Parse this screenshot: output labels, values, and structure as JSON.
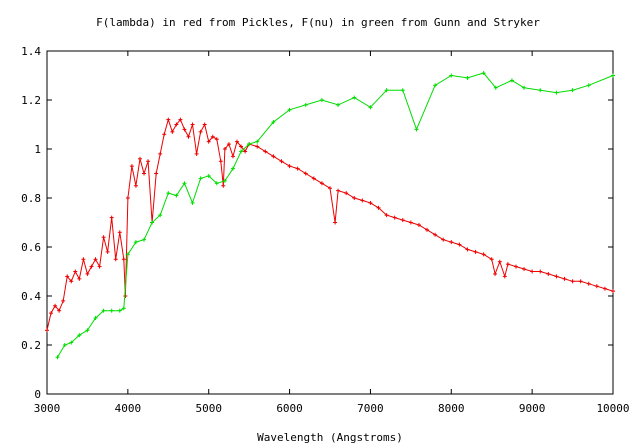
{
  "chart_data": {
    "type": "line",
    "title": "F(lambda) in red from Pickles, F(nu) in green from Gunn and Stryker",
    "xlabel": "Wavelength (Angstroms)",
    "ylabel": "",
    "xlim": [
      3000,
      10000
    ],
    "ylim": [
      0,
      1.4
    ],
    "xticks": [
      "3000",
      "4000",
      "5000",
      "6000",
      "7000",
      "8000",
      "9000",
      "10000"
    ],
    "yticks": [
      "0",
      "0.2",
      "0.4",
      "0.6",
      "0.8",
      "1",
      "1.2",
      "1.4"
    ],
    "grid": false,
    "legend": "none",
    "series": [
      {
        "color": "#ee0000",
        "points": [
          [
            3000,
            0.26
          ],
          [
            3050,
            0.33
          ],
          [
            3100,
            0.36
          ],
          [
            3150,
            0.34
          ],
          [
            3200,
            0.38
          ],
          [
            3250,
            0.48
          ],
          [
            3300,
            0.46
          ],
          [
            3350,
            0.5
          ],
          [
            3400,
            0.47
          ],
          [
            3450,
            0.55
          ],
          [
            3500,
            0.49
          ],
          [
            3550,
            0.52
          ],
          [
            3600,
            0.55
          ],
          [
            3650,
            0.52
          ],
          [
            3700,
            0.64
          ],
          [
            3750,
            0.58
          ],
          [
            3800,
            0.72
          ],
          [
            3850,
            0.55
          ],
          [
            3900,
            0.66
          ],
          [
            3950,
            0.55
          ],
          [
            3970,
            0.4
          ],
          [
            4000,
            0.8
          ],
          [
            4050,
            0.93
          ],
          [
            4100,
            0.85
          ],
          [
            4150,
            0.96
          ],
          [
            4200,
            0.9
          ],
          [
            4250,
            0.95
          ],
          [
            4300,
            0.7
          ],
          [
            4350,
            0.9
          ],
          [
            4400,
            0.98
          ],
          [
            4450,
            1.06
          ],
          [
            4500,
            1.12
          ],
          [
            4550,
            1.07
          ],
          [
            4600,
            1.1
          ],
          [
            4650,
            1.12
          ],
          [
            4700,
            1.08
          ],
          [
            4750,
            1.05
          ],
          [
            4800,
            1.1
          ],
          [
            4850,
            0.98
          ],
          [
            4900,
            1.07
          ],
          [
            4950,
            1.1
          ],
          [
            5000,
            1.03
          ],
          [
            5050,
            1.05
          ],
          [
            5100,
            1.04
          ],
          [
            5150,
            0.95
          ],
          [
            5180,
            0.85
          ],
          [
            5200,
            1.0
          ],
          [
            5250,
            1.02
          ],
          [
            5300,
            0.97
          ],
          [
            5350,
            1.03
          ],
          [
            5400,
            1.01
          ],
          [
            5450,
            0.99
          ],
          [
            5500,
            1.02
          ],
          [
            5600,
            1.01
          ],
          [
            5700,
            0.99
          ],
          [
            5800,
            0.97
          ],
          [
            5900,
            0.95
          ],
          [
            6000,
            0.93
          ],
          [
            6100,
            0.92
          ],
          [
            6200,
            0.9
          ],
          [
            6300,
            0.88
          ],
          [
            6400,
            0.86
          ],
          [
            6500,
            0.84
          ],
          [
            6563,
            0.7
          ],
          [
            6600,
            0.83
          ],
          [
            6700,
            0.82
          ],
          [
            6800,
            0.8
          ],
          [
            6900,
            0.79
          ],
          [
            7000,
            0.78
          ],
          [
            7100,
            0.76
          ],
          [
            7200,
            0.73
          ],
          [
            7300,
            0.72
          ],
          [
            7400,
            0.71
          ],
          [
            7500,
            0.7
          ],
          [
            7600,
            0.69
          ],
          [
            7700,
            0.67
          ],
          [
            7800,
            0.65
          ],
          [
            7900,
            0.63
          ],
          [
            8000,
            0.62
          ],
          [
            8100,
            0.61
          ],
          [
            8200,
            0.59
          ],
          [
            8300,
            0.58
          ],
          [
            8400,
            0.57
          ],
          [
            8500,
            0.55
          ],
          [
            8542,
            0.49
          ],
          [
            8600,
            0.54
          ],
          [
            8662,
            0.48
          ],
          [
            8700,
            0.53
          ],
          [
            8800,
            0.52
          ],
          [
            8900,
            0.51
          ],
          [
            9000,
            0.5
          ],
          [
            9100,
            0.5
          ],
          [
            9200,
            0.49
          ],
          [
            9300,
            0.48
          ],
          [
            9400,
            0.47
          ],
          [
            9500,
            0.46
          ],
          [
            9600,
            0.46
          ],
          [
            9700,
            0.45
          ],
          [
            9800,
            0.44
          ],
          [
            9900,
            0.43
          ],
          [
            10000,
            0.42
          ]
        ]
      },
      {
        "color": "#00dd00",
        "points": [
          [
            3130,
            0.15
          ],
          [
            3220,
            0.2
          ],
          [
            3300,
            0.21
          ],
          [
            3400,
            0.24
          ],
          [
            3500,
            0.26
          ],
          [
            3600,
            0.31
          ],
          [
            3700,
            0.34
          ],
          [
            3800,
            0.34
          ],
          [
            3900,
            0.34
          ],
          [
            3950,
            0.35
          ],
          [
            4000,
            0.57
          ],
          [
            4100,
            0.62
          ],
          [
            4200,
            0.63
          ],
          [
            4300,
            0.7
          ],
          [
            4400,
            0.73
          ],
          [
            4500,
            0.82
          ],
          [
            4600,
            0.81
          ],
          [
            4700,
            0.86
          ],
          [
            4800,
            0.78
          ],
          [
            4900,
            0.88
          ],
          [
            5000,
            0.89
          ],
          [
            5100,
            0.86
          ],
          [
            5200,
            0.87
          ],
          [
            5300,
            0.92
          ],
          [
            5400,
            0.99
          ],
          [
            5500,
            1.02
          ],
          [
            5600,
            1.03
          ],
          [
            5800,
            1.11
          ],
          [
            6000,
            1.16
          ],
          [
            6200,
            1.18
          ],
          [
            6400,
            1.2
          ],
          [
            6600,
            1.18
          ],
          [
            6800,
            1.21
          ],
          [
            7000,
            1.17
          ],
          [
            7200,
            1.24
          ],
          [
            7400,
            1.24
          ],
          [
            7570,
            1.08
          ],
          [
            7800,
            1.26
          ],
          [
            8000,
            1.3
          ],
          [
            8200,
            1.29
          ],
          [
            8400,
            1.31
          ],
          [
            8550,
            1.25
          ],
          [
            8750,
            1.28
          ],
          [
            8900,
            1.25
          ],
          [
            9100,
            1.24
          ],
          [
            9300,
            1.23
          ],
          [
            9500,
            1.24
          ],
          [
            9700,
            1.26
          ],
          [
            10000,
            1.3
          ]
        ]
      }
    ]
  }
}
